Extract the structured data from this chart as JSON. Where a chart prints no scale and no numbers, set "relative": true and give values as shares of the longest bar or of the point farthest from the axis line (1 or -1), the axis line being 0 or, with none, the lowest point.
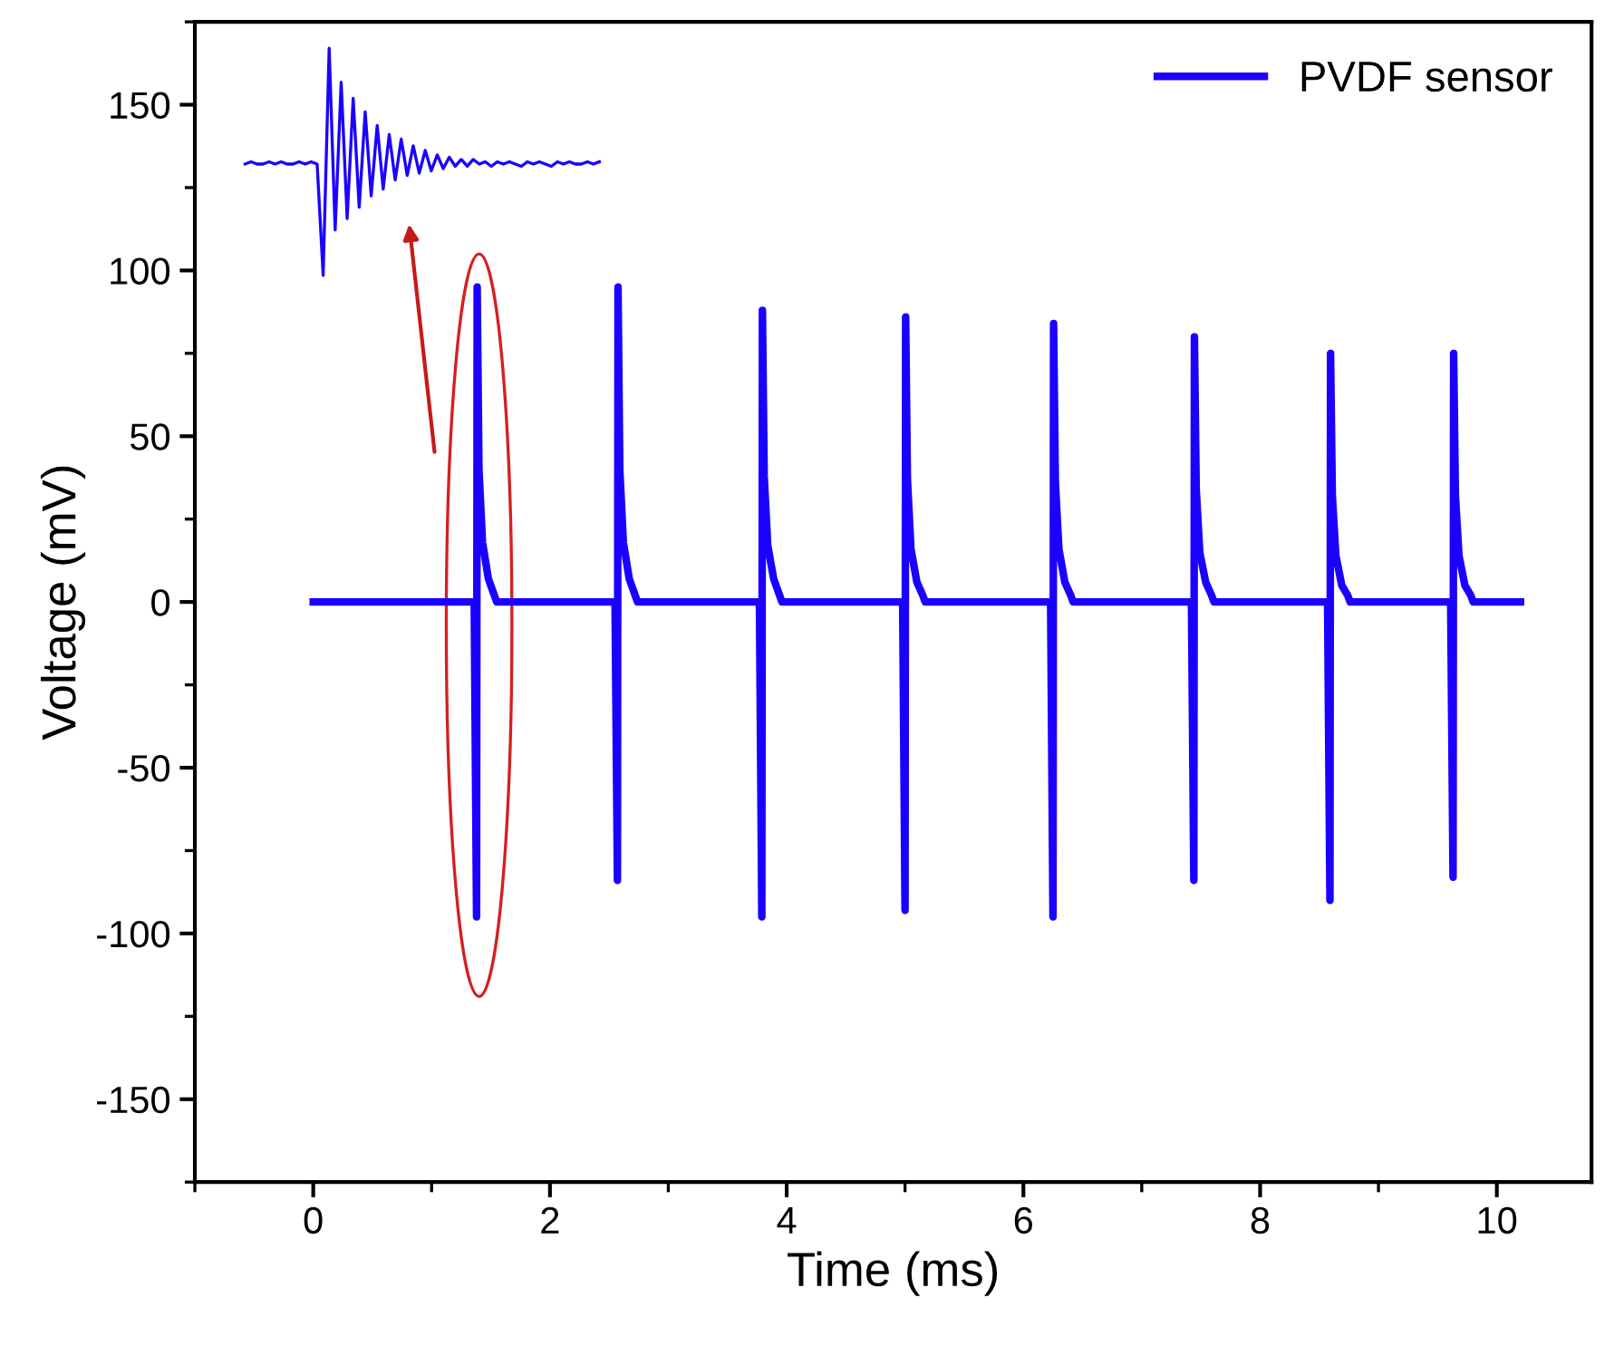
{
  "chart_data": [
    {
      "type": "line",
      "xlabel": "Time (ms)",
      "ylabel": "Voltage (mV)",
      "xlim": [
        -1,
        10.8
      ],
      "ylim": [
        -175,
        175
      ],
      "xticks": [
        0,
        2,
        4,
        6,
        8,
        10
      ],
      "yticks": [
        -150,
        -100,
        -50,
        0,
        50,
        100,
        150
      ],
      "legend": "top right",
      "grid": false,
      "marker": "none",
      "line_style": "solid",
      "series": [
        {
          "name": "PVDF sensor",
          "color": "#1a00ff",
          "x": [
            0,
            1.36,
            1.38,
            1.385,
            1.4,
            1.43,
            1.48,
            1.53,
            1.55,
            2.55,
            2.57,
            2.575,
            2.59,
            2.62,
            2.67,
            2.72,
            2.74,
            3.77,
            3.79,
            3.795,
            3.81,
            3.84,
            3.89,
            3.94,
            3.96,
            4.98,
            5.0,
            5.005,
            5.02,
            5.05,
            5.1,
            5.15,
            5.17,
            6.23,
            6.25,
            6.255,
            6.27,
            6.3,
            6.35,
            6.4,
            6.42,
            7.42,
            7.44,
            7.445,
            7.46,
            7.49,
            7.54,
            7.59,
            7.61,
            8.57,
            8.59,
            8.595,
            8.61,
            8.64,
            8.69,
            8.74,
            8.76,
            9.61,
            9.63,
            9.635,
            9.65,
            9.68,
            9.73,
            9.78,
            9.8,
            10.2
          ],
          "values": [
            0,
            0,
            -95,
            95,
            40,
            18,
            7,
            2,
            0,
            0,
            -84,
            95,
            40,
            18,
            7,
            2,
            0,
            0,
            -95,
            88,
            38,
            17,
            7,
            2,
            0,
            0,
            -93,
            86,
            37,
            16,
            6,
            2,
            0,
            0,
            -95,
            84,
            36,
            16,
            6,
            2,
            0,
            0,
            -84,
            80,
            34,
            15,
            6,
            2,
            0,
            0,
            -90,
            75,
            32,
            14,
            5,
            2,
            0,
            0,
            -83,
            75,
            32,
            14,
            5,
            2,
            0,
            0
          ]
        }
      ]
    },
    {
      "type": "line",
      "relative": true,
      "marker": "none",
      "line_style": "solid",
      "categories": [
        null,
        null,
        null,
        null,
        null,
        null,
        null,
        null,
        null,
        null,
        null,
        null,
        null,
        null,
        null,
        null,
        null,
        null,
        null,
        null,
        null,
        null,
        null,
        null,
        null,
        null,
        null,
        null,
        null,
        null,
        null,
        null,
        null,
        null,
        null,
        null,
        null,
        null,
        null,
        null,
        null,
        null,
        null,
        null,
        null,
        null,
        null,
        null,
        null,
        null,
        null,
        null,
        null,
        null,
        null,
        null,
        null,
        null,
        null,
        null
      ],
      "series": [
        {
          "color": "#1a00ff",
          "values": [
            0.49,
            0.5,
            0.49,
            0.49,
            0.5,
            0.49,
            0.5,
            0.49,
            0.49,
            0.5,
            0.49,
            0.5,
            0.49,
            0.0,
            1.0,
            0.2,
            0.85,
            0.25,
            0.78,
            0.3,
            0.72,
            0.35,
            0.66,
            0.38,
            0.62,
            0.42,
            0.6,
            0.44,
            0.57,
            0.45,
            0.55,
            0.46,
            0.53,
            0.47,
            0.52,
            0.48,
            0.51,
            0.48,
            0.51,
            0.49,
            0.5,
            0.48,
            0.5,
            0.49,
            0.5,
            0.49,
            0.48,
            0.5,
            0.49,
            0.5,
            0.49,
            0.48,
            0.5,
            0.49,
            0.5,
            0.49,
            0.49,
            0.5,
            0.49,
            0.5
          ]
        }
      ]
    }
  ]
}
